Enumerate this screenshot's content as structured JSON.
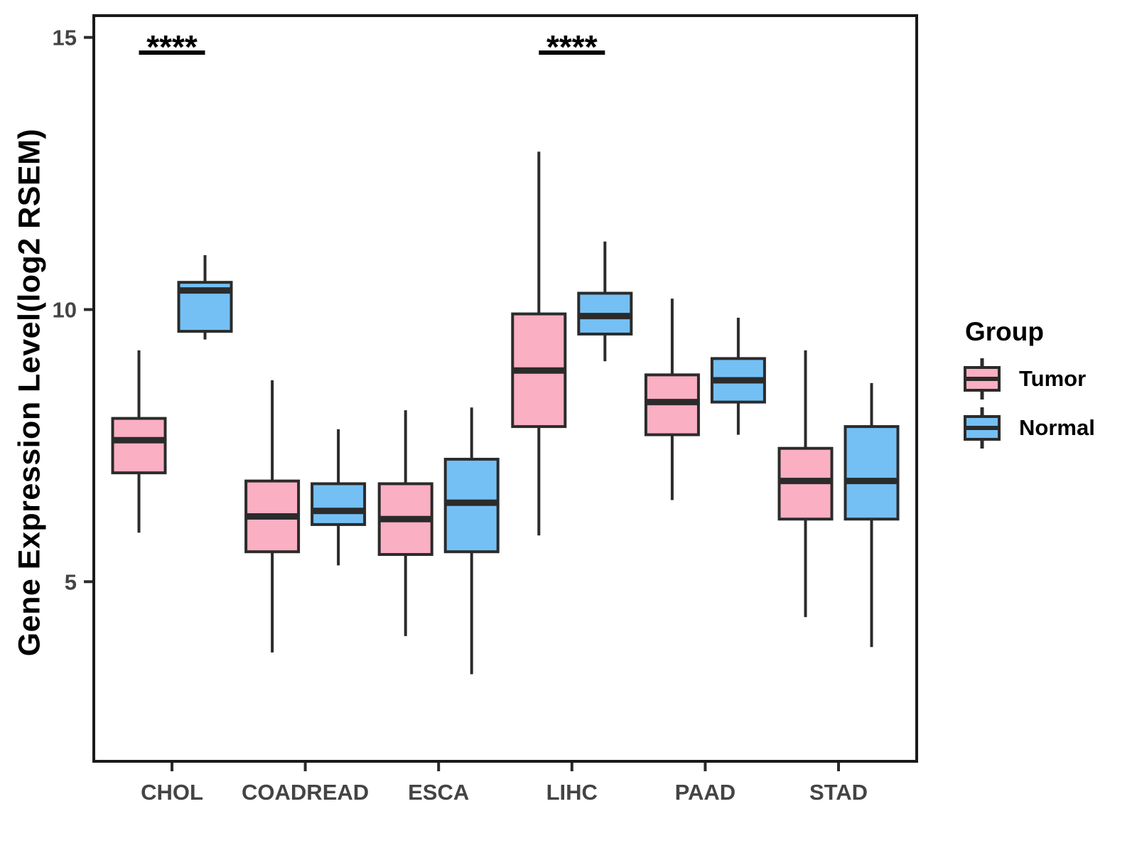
{
  "figure": {
    "background": "#ffffff"
  },
  "legend": {
    "title": "Group",
    "position": "right"
  },
  "chart_data": {
    "type": "box",
    "title": "",
    "xlabel": "",
    "ylabel": "Gene Expression Level(log2 RSEM)",
    "ylim": [
      1.7,
      15.4
    ],
    "yticks": [
      5,
      10,
      15
    ],
    "grid": "off",
    "legend_position": "right",
    "categories": [
      "CHOL",
      "COADREAD",
      "ESCA",
      "LIHC",
      "PAAD",
      "STAD"
    ],
    "series": [
      {
        "name": "Tumor",
        "color": "#FAAFC3",
        "boxes": [
          {
            "category": "CHOL",
            "min": 5.9,
            "q1": 7.0,
            "median": 7.6,
            "q3": 8.0,
            "max": 9.25
          },
          {
            "category": "COADREAD",
            "min": 3.7,
            "q1": 5.55,
            "median": 6.2,
            "q3": 6.85,
            "max": 8.7
          },
          {
            "category": "ESCA",
            "min": 4.0,
            "q1": 5.5,
            "median": 6.15,
            "q3": 6.8,
            "max": 8.15
          },
          {
            "category": "LIHC",
            "min": 5.85,
            "q1": 7.85,
            "median": 8.88,
            "q3": 9.92,
            "max": 12.9
          },
          {
            "category": "PAAD",
            "min": 6.5,
            "q1": 7.7,
            "median": 8.3,
            "q3": 8.8,
            "max": 10.2
          },
          {
            "category": "STAD",
            "min": 4.35,
            "q1": 6.15,
            "median": 6.85,
            "q3": 7.45,
            "max": 9.25
          }
        ]
      },
      {
        "name": "Normal",
        "color": "#74C0F4",
        "boxes": [
          {
            "category": "CHOL",
            "min": 9.45,
            "q1": 9.6,
            "median": 10.35,
            "q3": 10.5,
            "max": 11.0
          },
          {
            "category": "COADREAD",
            "min": 5.3,
            "q1": 6.05,
            "median": 6.3,
            "q3": 6.8,
            "max": 7.8
          },
          {
            "category": "ESCA",
            "min": 3.3,
            "q1": 5.55,
            "median": 6.45,
            "q3": 7.25,
            "max": 8.2
          },
          {
            "category": "LIHC",
            "min": 9.05,
            "q1": 9.55,
            "median": 9.88,
            "q3": 10.3,
            "max": 11.25
          },
          {
            "category": "PAAD",
            "min": 7.7,
            "q1": 8.3,
            "median": 8.7,
            "q3": 9.1,
            "max": 9.85
          },
          {
            "category": "STAD",
            "min": 3.8,
            "q1": 6.15,
            "median": 6.85,
            "q3": 7.85,
            "max": 8.65
          }
        ]
      }
    ],
    "annotations": [
      {
        "category": "CHOL",
        "text": "****"
      },
      {
        "category": "LIHC",
        "text": "****"
      }
    ],
    "style": {
      "box_border_color": "#2B2B2B",
      "median_color": "#2B2B2B",
      "whisker_color": "#2B2B2B",
      "panel_border_color": "#1A1A1A",
      "axis_tick_label_color": "#444444",
      "axis_title_color": "#000000",
      "annotation_color": "#000000"
    }
  }
}
